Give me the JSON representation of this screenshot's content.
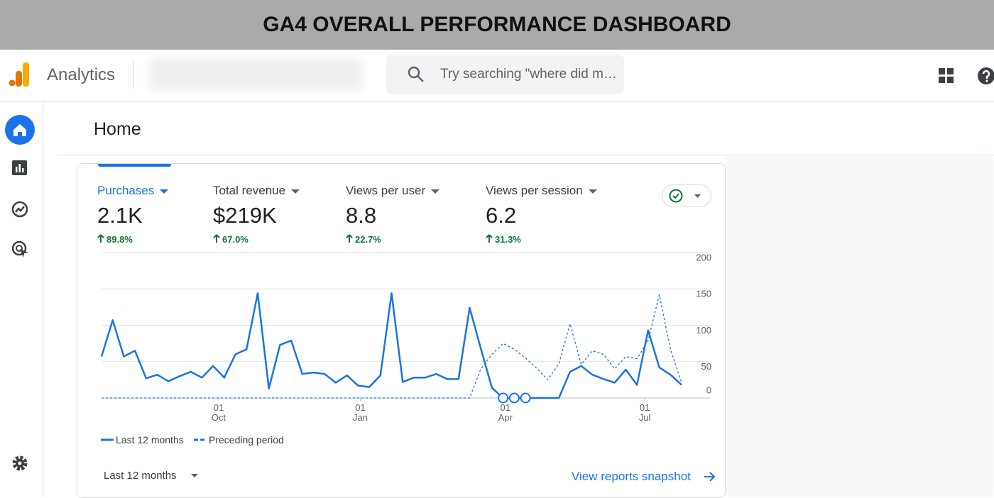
{
  "banner": {
    "title": "GA4 OVERALL PERFORMANCE DASHBOARD"
  },
  "header": {
    "app_name": "Analytics",
    "search_placeholder": "Try searching \"where did m…"
  },
  "page": {
    "title": "Home"
  },
  "metrics": [
    {
      "label": "Purchases",
      "value": "2.1K",
      "change": "89.8%"
    },
    {
      "label": "Total revenue",
      "value": "$219K",
      "change": "67.0%"
    },
    {
      "label": "Views per user",
      "value": "8.8",
      "change": "22.7%"
    },
    {
      "label": "Views per session",
      "value": "6.2",
      "change": "31.3%"
    }
  ],
  "chart_data": {
    "type": "line",
    "x": [
      0,
      1,
      2,
      3,
      4,
      5,
      6,
      7,
      8,
      9,
      10,
      11,
      12,
      13,
      14,
      15,
      16,
      17,
      18,
      19,
      20,
      21,
      22,
      23,
      24,
      25,
      26,
      27,
      28,
      29,
      30,
      31,
      32,
      33,
      34,
      35,
      36,
      37,
      38,
      39,
      40,
      41,
      42,
      43,
      44,
      45,
      46,
      47,
      48,
      49,
      50,
      51,
      52
    ],
    "xlim": [
      0,
      52
    ],
    "xticks": [
      {
        "value": 10.5,
        "label": "01\nOct"
      },
      {
        "value": 23.2,
        "label": "01\nJan"
      },
      {
        "value": 36.2,
        "label": "01\nApr"
      },
      {
        "value": 48.7,
        "label": "01\nJul"
      }
    ],
    "ylim": [
      0,
      200
    ],
    "yticks": [
      0,
      50,
      100,
      150,
      200
    ],
    "grid": true,
    "series": [
      {
        "name": "Last 12 months",
        "color": "#1a73e8",
        "dashed": false,
        "values": [
          57,
          107,
          57,
          65,
          27,
          32,
          23,
          30,
          36,
          28,
          44,
          28,
          60,
          67,
          144,
          13,
          73,
          79,
          33,
          35,
          33,
          21,
          31,
          17,
          15,
          31,
          144,
          22,
          28,
          28,
          33,
          26,
          26,
          124,
          68,
          14,
          0,
          0,
          0,
          0,
          0,
          0,
          36,
          44,
          32,
          26,
          21,
          39,
          18,
          93,
          42,
          32,
          18
        ]
      },
      {
        "name": "Preceding period",
        "color": "#1a73e8",
        "dashed": true,
        "values": [
          0,
          0,
          0,
          0,
          0,
          0,
          0,
          0,
          0,
          0,
          0,
          0,
          0,
          0,
          0,
          0,
          0,
          0,
          0,
          0,
          0,
          0,
          0,
          0,
          0,
          0,
          0,
          0,
          0,
          0,
          0,
          0,
          0,
          0,
          40,
          60,
          75,
          67,
          55,
          41,
          25,
          47,
          102,
          46,
          65,
          60,
          40,
          57,
          54,
          79,
          142,
          67,
          21
        ]
      }
    ]
  },
  "footer": {
    "range": "Last 12 months",
    "link": "View reports snapshot"
  }
}
